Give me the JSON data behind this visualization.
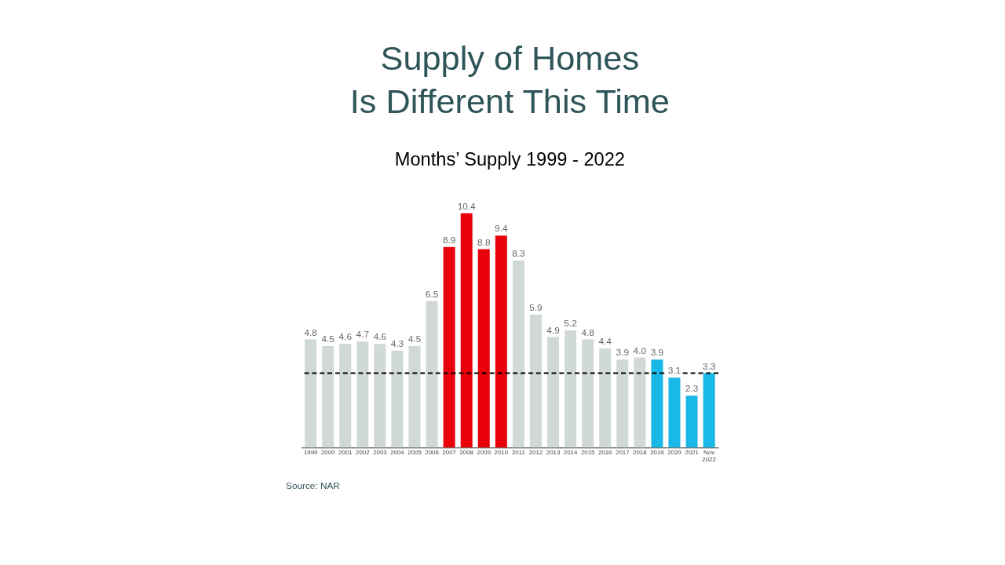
{
  "chart_data": {
    "type": "bar",
    "title": [
      "Supply of Homes",
      "Is Different This Time"
    ],
    "subtitle": "Months’ Supply 1999 - 2022",
    "categories": [
      "1999",
      "2000",
      "2001",
      "2002",
      "2003",
      "2004",
      "2005",
      "2006",
      "2007",
      "2008",
      "2009",
      "2010",
      "2011",
      "2012",
      "2013",
      "2014",
      "2015",
      "2016",
      "2017",
      "2018",
      "2019",
      "2020",
      "2021",
      "Nov 2022"
    ],
    "values": [
      4.8,
      4.5,
      4.6,
      4.7,
      4.6,
      4.3,
      4.5,
      6.5,
      8.9,
      10.4,
      8.8,
      9.4,
      8.3,
      5.9,
      4.9,
      5.2,
      4.8,
      4.4,
      3.9,
      4.0,
      3.9,
      3.1,
      2.3,
      3.3
    ],
    "colors": [
      "#d0d8d8",
      "#d0d8d8",
      "#d0d8d8",
      "#d0d8d8",
      "#d0d8d8",
      "#d0d8d8",
      "#d0d8d8",
      "#d0d8d8",
      "#e8000b",
      "#e8000b",
      "#e8000b",
      "#e8000b",
      "#d0d8d8",
      "#d0d8d8",
      "#d0d8d8",
      "#d0d8d8",
      "#d0d8d8",
      "#d0d8d8",
      "#d0d8d8",
      "#d0d8d8",
      "#1ab8e6",
      "#1ab8e6",
      "#1ab8e6",
      "#1ab8e6"
    ],
    "value_labels": [
      "4.8",
      "4.5",
      "4.6",
      "4.7",
      "4.6",
      "4.3",
      "4.5",
      "6.5",
      "8.9",
      "10.4",
      "8.8",
      "9.4",
      "8.3",
      "5.9",
      "4.9",
      "5.2",
      "4.8",
      "4.4",
      "3.9",
      "4.0",
      "3.9",
      "3.1",
      "2.3",
      "3.3"
    ],
    "ref_lines": [
      {
        "axis": "y",
        "value": 3.3,
        "label": null,
        "color": "#000000",
        "line_style": "dashed"
      }
    ],
    "annotations": [
      "Source: NAR"
    ]
  }
}
